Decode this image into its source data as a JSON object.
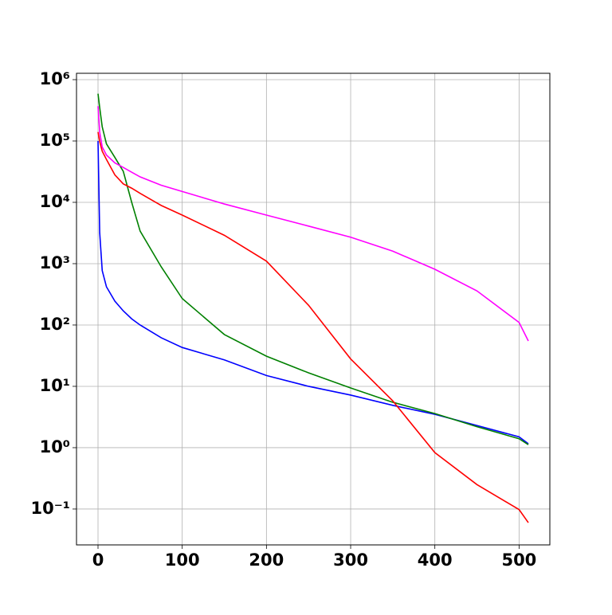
{
  "chart_data": {
    "type": "line",
    "log_y": true,
    "grid": true,
    "x": [
      0,
      2,
      5,
      10,
      20,
      30,
      40,
      50,
      75,
      100,
      150,
      200,
      250,
      300,
      350,
      400,
      450,
      500,
      511
    ],
    "series": [
      {
        "color": "#0000ff",
        "values": [
          100000,
          3200,
          770,
          420,
          245,
          170,
          126,
          100,
          62,
          43,
          27,
          15,
          10,
          7.2,
          4.9,
          3.5,
          2.3,
          1.5,
          1.16
        ]
      },
      {
        "color": "#008000",
        "values": [
          590000,
          350000,
          170000,
          90000,
          54000,
          32000,
          10000,
          3400,
          890,
          270,
          70,
          31,
          16.6,
          9.4,
          5.5,
          3.6,
          2.2,
          1.4,
          1.12
        ]
      },
      {
        "color": "#ff0000",
        "values": [
          140000,
          98000,
          68000,
          50000,
          28000,
          20000,
          17000,
          14000,
          8900,
          6200,
          2900,
          1100,
          210,
          28,
          5.8,
          0.83,
          0.25,
          0.098,
          0.06
        ]
      },
      {
        "color": "#ff00ff",
        "values": [
          370000,
          140000,
          80000,
          59000,
          44000,
          37000,
          31000,
          26000,
          19000,
          15000,
          9400,
          6200,
          4100,
          2700,
          1600,
          810,
          360,
          110,
          55
        ]
      }
    ],
    "xlim": [
      -25.55,
      536.55
    ],
    "xticks": [
      0,
      100,
      200,
      300,
      400,
      500
    ],
    "ylim": [
      0.026,
      1270000
    ],
    "yticks": [
      {
        "value": 0.1,
        "label": "10⁻¹"
      },
      {
        "value": 1,
        "label": "10⁰"
      },
      {
        "value": 10,
        "label": "10¹"
      },
      {
        "value": 100,
        "label": "10²"
      },
      {
        "value": 1000,
        "label": "10³"
      },
      {
        "value": 10000,
        "label": "10⁴"
      },
      {
        "value": 100000,
        "label": "10⁵"
      },
      {
        "value": 1000000,
        "label": "10⁶"
      }
    ]
  }
}
